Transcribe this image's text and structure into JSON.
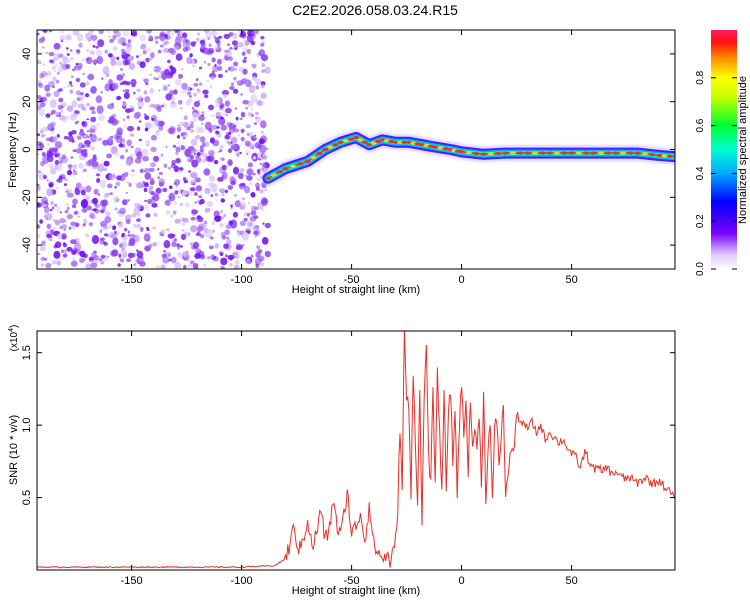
{
  "title": "C2E2.2026.058.03.24.R15",
  "colors": {
    "snr_line": "#e8302a",
    "track_core": "#ff2020",
    "track_mid": "#00e0d0",
    "track_outer": "#1a10ff",
    "noise": "#7a1cf0"
  },
  "chart_data": [
    {
      "type": "heatmap",
      "xlabel": "Height of straight line (km)",
      "ylabel": "Frequency (Hz)",
      "xlim": [
        -193,
        97
      ],
      "ylim": [
        -50,
        50
      ],
      "xticks": [
        {
          "v": -150,
          "label": "-150"
        },
        {
          "v": -100,
          "label": "-100"
        },
        {
          "v": -50,
          "label": "-50"
        },
        {
          "v": 0,
          "label": "0"
        },
        {
          "v": 50,
          "label": "50"
        }
      ],
      "yticks": [
        {
          "v": -40,
          "label": "-40"
        },
        {
          "v": -20,
          "label": "-20"
        },
        {
          "v": 0,
          "label": "0"
        },
        {
          "v": 20,
          "label": "20"
        },
        {
          "v": 40,
          "label": "40"
        }
      ],
      "noise_region_x": [
        -193,
        -88
      ],
      "track": {
        "x": [
          -88,
          -80,
          -70,
          -62,
          -55,
          -48,
          -42,
          -36,
          -30,
          -24,
          -18,
          -12,
          -5,
          0,
          10,
          20,
          30,
          40,
          50,
          60,
          70,
          80,
          90,
          97
        ],
        "y": [
          -12,
          -8,
          -5,
          0,
          3,
          5,
          2,
          4,
          3,
          3,
          2,
          1,
          0,
          -1,
          -2,
          -1.5,
          -1.5,
          -1.5,
          -1.5,
          -1.5,
          -1.5,
          -1.5,
          -2.5,
          -3
        ]
      },
      "colorbar": {
        "label": "Normalized spectral amplitude",
        "range": [
          0,
          1
        ],
        "ticks": [
          {
            "v": 0.0,
            "label": "0.0"
          },
          {
            "v": 0.2,
            "label": "0.2"
          },
          {
            "v": 0.4,
            "label": "0.4"
          },
          {
            "v": 0.6,
            "label": "0.6"
          },
          {
            "v": 0.8,
            "label": "0.8"
          }
        ]
      }
    },
    {
      "type": "line",
      "xlabel": "Height of straight line (km)",
      "ylabel": "SNR (10 * v/v)",
      "scale_label": "(x10",
      "scale_exp": "4",
      "scale_close": ")",
      "xlim": [
        -193,
        97
      ],
      "ylim": [
        0,
        1.65
      ],
      "xticks": [
        {
          "v": -150,
          "label": "-150"
        },
        {
          "v": -100,
          "label": "-100"
        },
        {
          "v": -50,
          "label": "-50"
        },
        {
          "v": 0,
          "label": "0"
        },
        {
          "v": 50,
          "label": "50"
        }
      ],
      "yticks": [
        {
          "v": 0.5,
          "label": "0.5"
        },
        {
          "v": 1.0,
          "label": "1.0"
        },
        {
          "v": 1.5,
          "label": "1.5"
        }
      ],
      "series": [
        {
          "x": [
            -193,
            -150,
            -100,
            -85,
            -80,
            -78,
            -76,
            -74,
            -72,
            -70,
            -68,
            -66,
            -64,
            -62,
            -60,
            -58,
            -56,
            -54,
            -52,
            -50,
            -48,
            -46,
            -44,
            -42,
            -40,
            -38,
            -36,
            -34,
            -32,
            -30,
            -29,
            -28,
            -27,
            -26,
            -25,
            -24,
            -23,
            -22,
            -21,
            -20,
            -19,
            -18,
            -17,
            -16,
            -15,
            -14,
            -13,
            -12,
            -11,
            -10,
            -9,
            -8,
            -7,
            -6,
            -5,
            -4,
            -3,
            -2,
            -1,
            0,
            1,
            2,
            3,
            4,
            5,
            6,
            7,
            8,
            9,
            10,
            11,
            12,
            13,
            14,
            15,
            16,
            17,
            18,
            19,
            20,
            22,
            24,
            25,
            26,
            28,
            30,
            32,
            34,
            36,
            38,
            40,
            42,
            44,
            46,
            48,
            50,
            52,
            54,
            56,
            58,
            60,
            62,
            64,
            66,
            68,
            70,
            72,
            74,
            76,
            78,
            80,
            82,
            84,
            86,
            88,
            90,
            92,
            94,
            97
          ],
          "y": [
            0.02,
            0.02,
            0.02,
            0.03,
            0.08,
            0.18,
            0.3,
            0.12,
            0.22,
            0.35,
            0.15,
            0.25,
            0.42,
            0.2,
            0.3,
            0.5,
            0.22,
            0.32,
            0.55,
            0.25,
            0.3,
            0.4,
            0.2,
            0.45,
            0.18,
            0.12,
            0.08,
            0.1,
            0.05,
            0.2,
            0.45,
            1.0,
            0.55,
            1.65,
            1.2,
            1.1,
            0.5,
            1.4,
            0.9,
            0.45,
            1.3,
            0.3,
            1.2,
            1.55,
            0.8,
            0.6,
            1.25,
            0.55,
            1.35,
            1.0,
            0.5,
            1.2,
            0.6,
            1.05,
            1.25,
            0.75,
            1.1,
            0.55,
            1.0,
            1.3,
            0.9,
            1.2,
            0.7,
            1.15,
            0.85,
            1.0,
            0.8,
            1.1,
            0.6,
            1.2,
            0.5,
            0.85,
            1.0,
            0.45,
            0.95,
            1.05,
            0.75,
            0.9,
            1.15,
            0.5,
            0.8,
            0.85,
            1.08,
            1.05,
            1.0,
            0.98,
            1.02,
            0.95,
            1.0,
            0.9,
            0.95,
            0.92,
            0.88,
            0.9,
            0.85,
            0.8,
            0.78,
            0.7,
            0.82,
            0.75,
            0.7,
            0.7,
            0.68,
            0.72,
            0.66,
            0.68,
            0.65,
            0.63,
            0.64,
            0.62,
            0.6,
            0.62,
            0.64,
            0.6,
            0.6,
            0.62,
            0.58,
            0.55,
            0.5
          ]
        }
      ]
    }
  ]
}
